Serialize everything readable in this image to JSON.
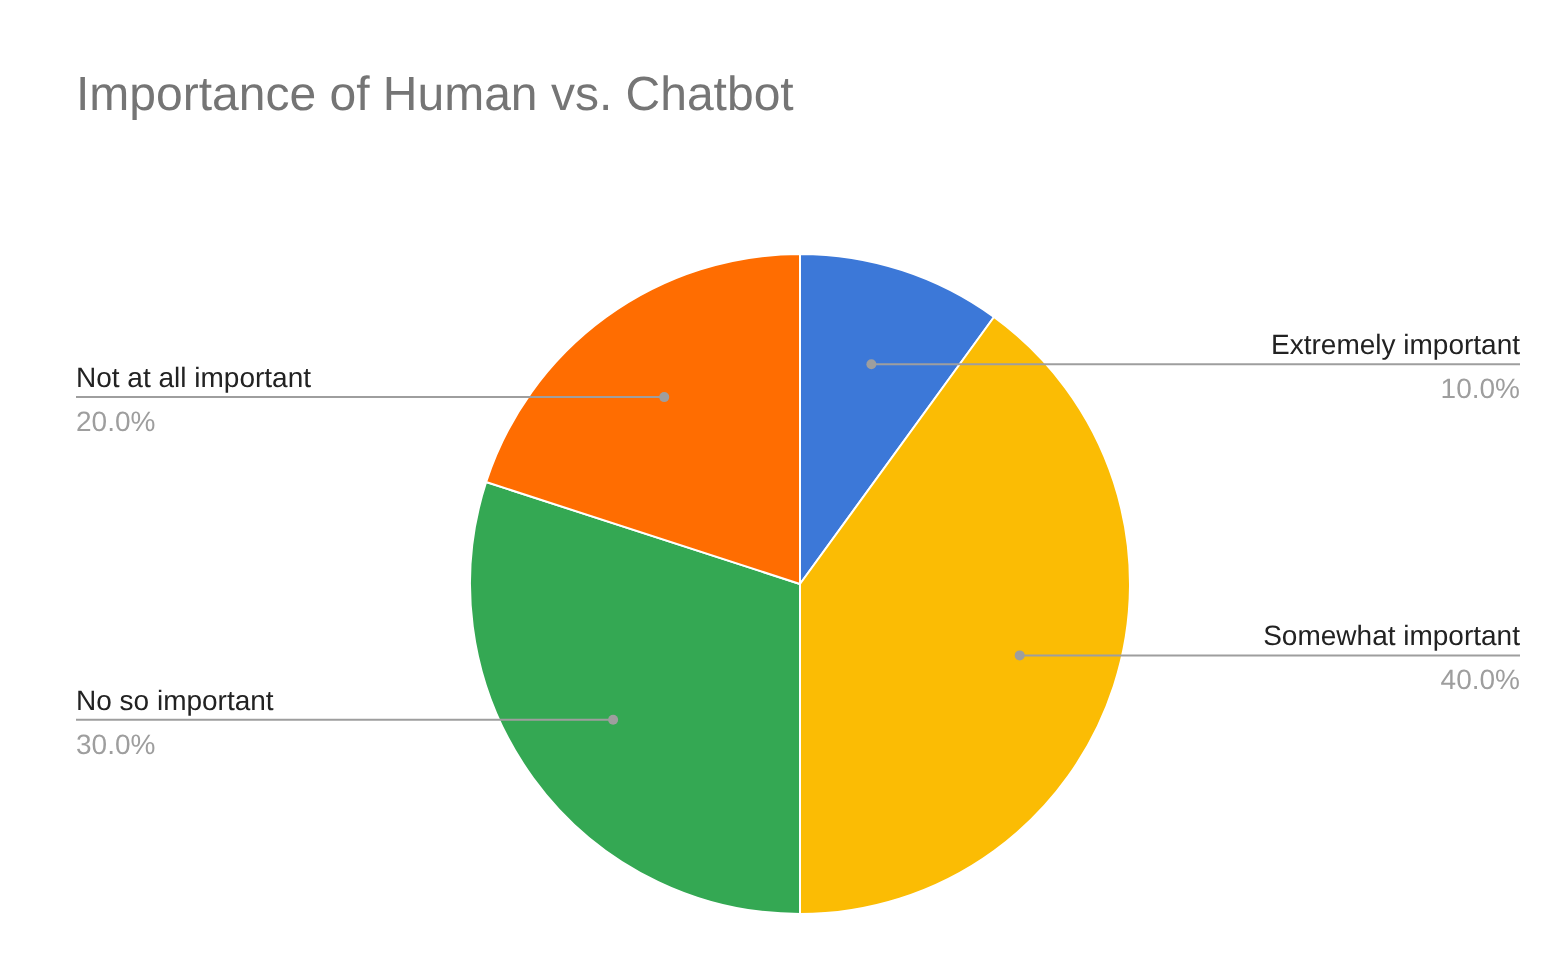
{
  "chart_data": {
    "type": "pie",
    "title": "Importance of Human vs. Chatbot",
    "categories": [
      "Extremely important",
      "Somewhat important",
      "No so important",
      "Not at all important"
    ],
    "values": [
      10,
      40,
      30,
      20
    ],
    "colors": [
      "#3c78d8",
      "#fbbc04",
      "#34a853",
      "#ff6d01"
    ],
    "value_labels": [
      "10.0%",
      "40.0%",
      "30.0%",
      "20.0%"
    ]
  }
}
